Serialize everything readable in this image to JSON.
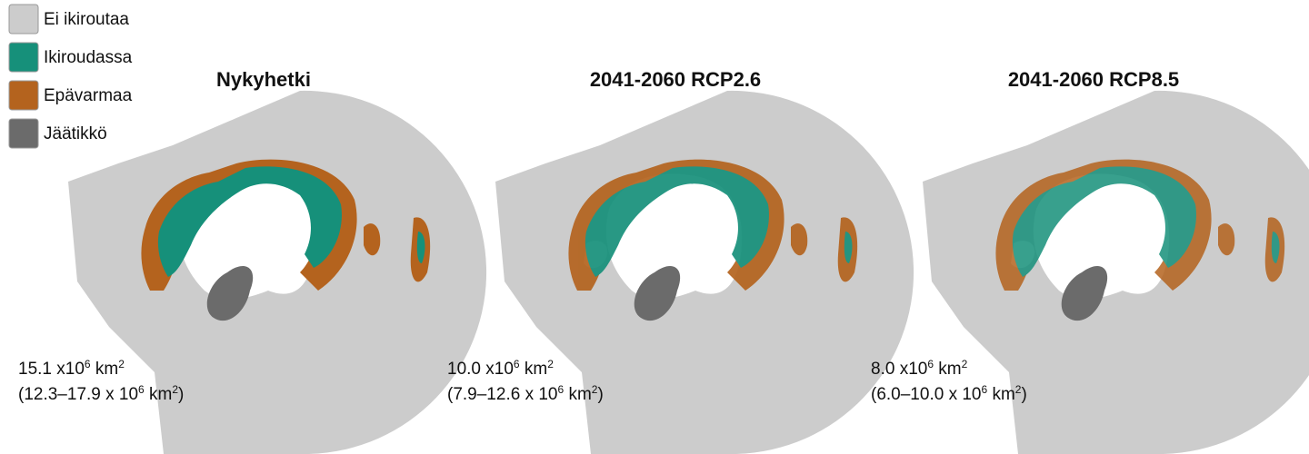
{
  "legend": [
    {
      "label": "Ei ikiroutaa",
      "color": "#cccccc"
    },
    {
      "label": "Ikiroudassa",
      "color": "#16907a"
    },
    {
      "label": "Epävarmaa",
      "color": "#b4631e"
    },
    {
      "label": "Jäätikkö",
      "color": "#6b6b6b"
    }
  ],
  "panels": [
    {
      "title": "Nykyhetki",
      "area": [
        [
          "15.1 x10",
          "6",
          " km",
          "2"
        ],
        [
          "(12.3–17.9 x 10",
          "6",
          " km",
          "2",
          ")"
        ]
      ]
    },
    {
      "title": "2041-2060 RCP2.6",
      "area": [
        [
          "10.0 x10",
          "6",
          " km",
          "2"
        ],
        [
          "(7.9–12.6 x 10",
          "6",
          " km",
          "2",
          ")"
        ]
      ]
    },
    {
      "title": "2041-2060 RCP8.5",
      "area": [
        [
          "8.0 x10",
          "6",
          " km",
          "2"
        ],
        [
          "(6.0–10.0 x 10",
          "6",
          " km",
          "2",
          ")"
        ]
      ]
    }
  ]
}
